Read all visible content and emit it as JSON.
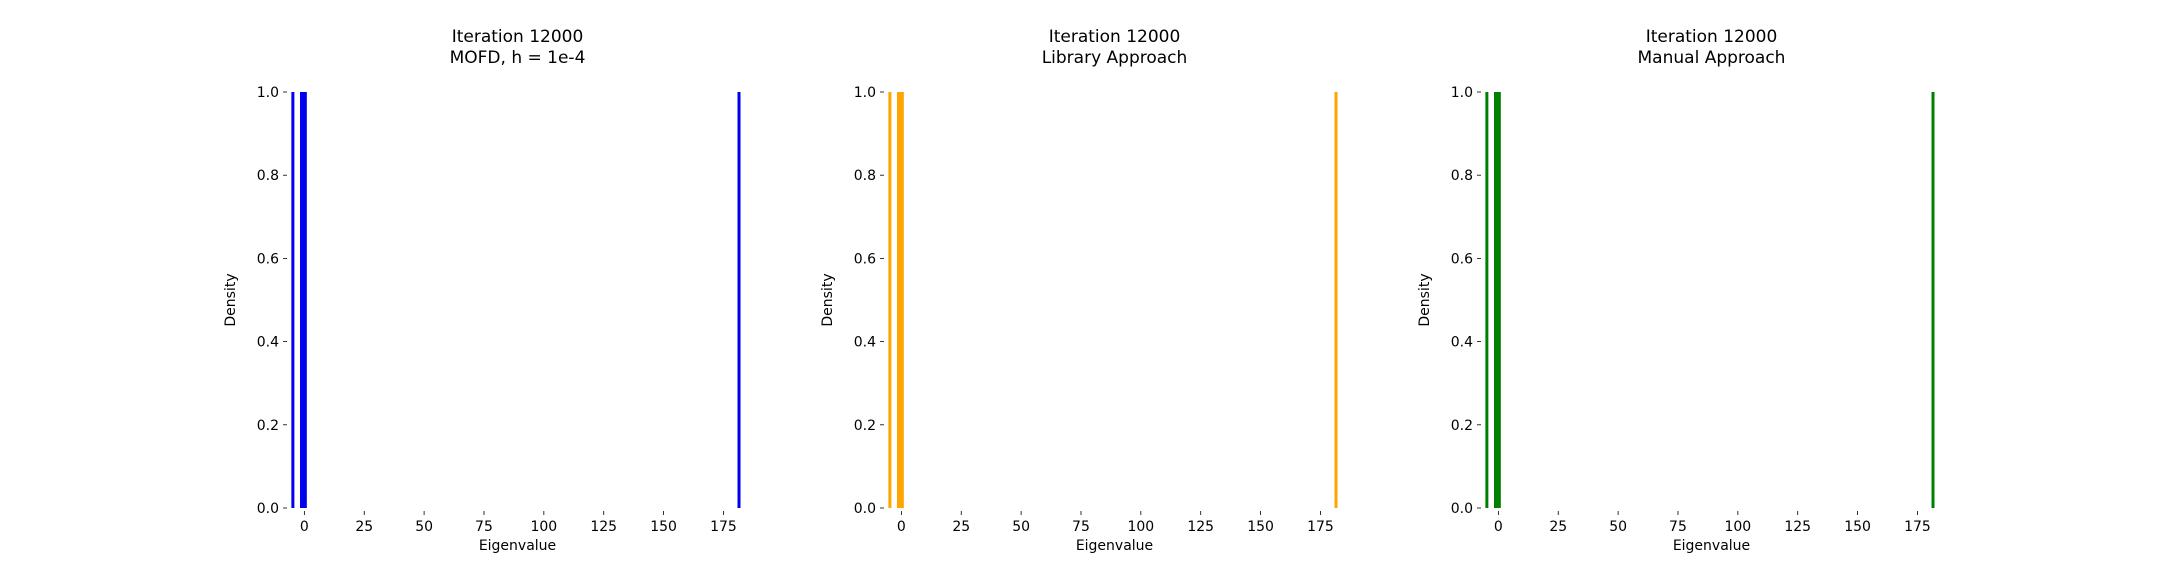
{
  "chart_data": [
    {
      "type": "histogram",
      "title": [
        "Iteration 12000",
        "MOFD, h = 1e-4"
      ],
      "xlabel": "Eigenvalue",
      "ylabel": "Density",
      "color": "#0000ee",
      "xlim": [
        -6,
        184
      ],
      "ylim": [
        0,
        1.0
      ],
      "xticks": [
        "0",
        "25",
        "50",
        "75",
        "100",
        "125",
        "150",
        "175"
      ],
      "yticks": [
        "0.0",
        "0.2",
        "0.4",
        "0.6",
        "0.8",
        "1.0"
      ],
      "grid": false,
      "bars": [
        {
          "x": -4.8,
          "density": 1.0
        },
        {
          "x": -1.2,
          "density": 1.0
        },
        {
          "x": -0.4,
          "density": 1.0
        },
        {
          "x": 0.4,
          "density": 1.0
        },
        {
          "x": 181.5,
          "density": 1.0
        }
      ]
    },
    {
      "type": "histogram",
      "title": [
        "Iteration 12000",
        "Library Approach"
      ],
      "xlabel": "Eigenvalue",
      "ylabel": "Density",
      "color": "#ffa500",
      "xlim": [
        -6,
        184
      ],
      "ylim": [
        0,
        1.0
      ],
      "xticks": [
        "0",
        "25",
        "50",
        "75",
        "100",
        "125",
        "150",
        "175"
      ],
      "yticks": [
        "0.0",
        "0.2",
        "0.4",
        "0.6",
        "0.8",
        "1.0"
      ],
      "grid": false,
      "bars": [
        {
          "x": -4.8,
          "density": 1.0
        },
        {
          "x": -1.2,
          "density": 1.0
        },
        {
          "x": -0.4,
          "density": 1.0
        },
        {
          "x": 0.4,
          "density": 1.0
        },
        {
          "x": 181.5,
          "density": 1.0
        }
      ]
    },
    {
      "type": "histogram",
      "title": [
        "Iteration 12000",
        "Manual Approach"
      ],
      "xlabel": "Eigenvalue",
      "ylabel": "Density",
      "color": "#008000",
      "xlim": [
        -6,
        184
      ],
      "ylim": [
        0,
        1.0
      ],
      "xticks": [
        "0",
        "25",
        "50",
        "75",
        "100",
        "125",
        "150",
        "175"
      ],
      "yticks": [
        "0.0",
        "0.2",
        "0.4",
        "0.6",
        "0.8",
        "1.0"
      ],
      "grid": false,
      "bars": [
        {
          "x": -4.8,
          "density": 1.0
        },
        {
          "x": -1.2,
          "density": 1.0
        },
        {
          "x": -0.4,
          "density": 1.0
        },
        {
          "x": 0.4,
          "density": 1.0
        },
        {
          "x": 181.5,
          "density": 1.0
        }
      ]
    }
  ]
}
